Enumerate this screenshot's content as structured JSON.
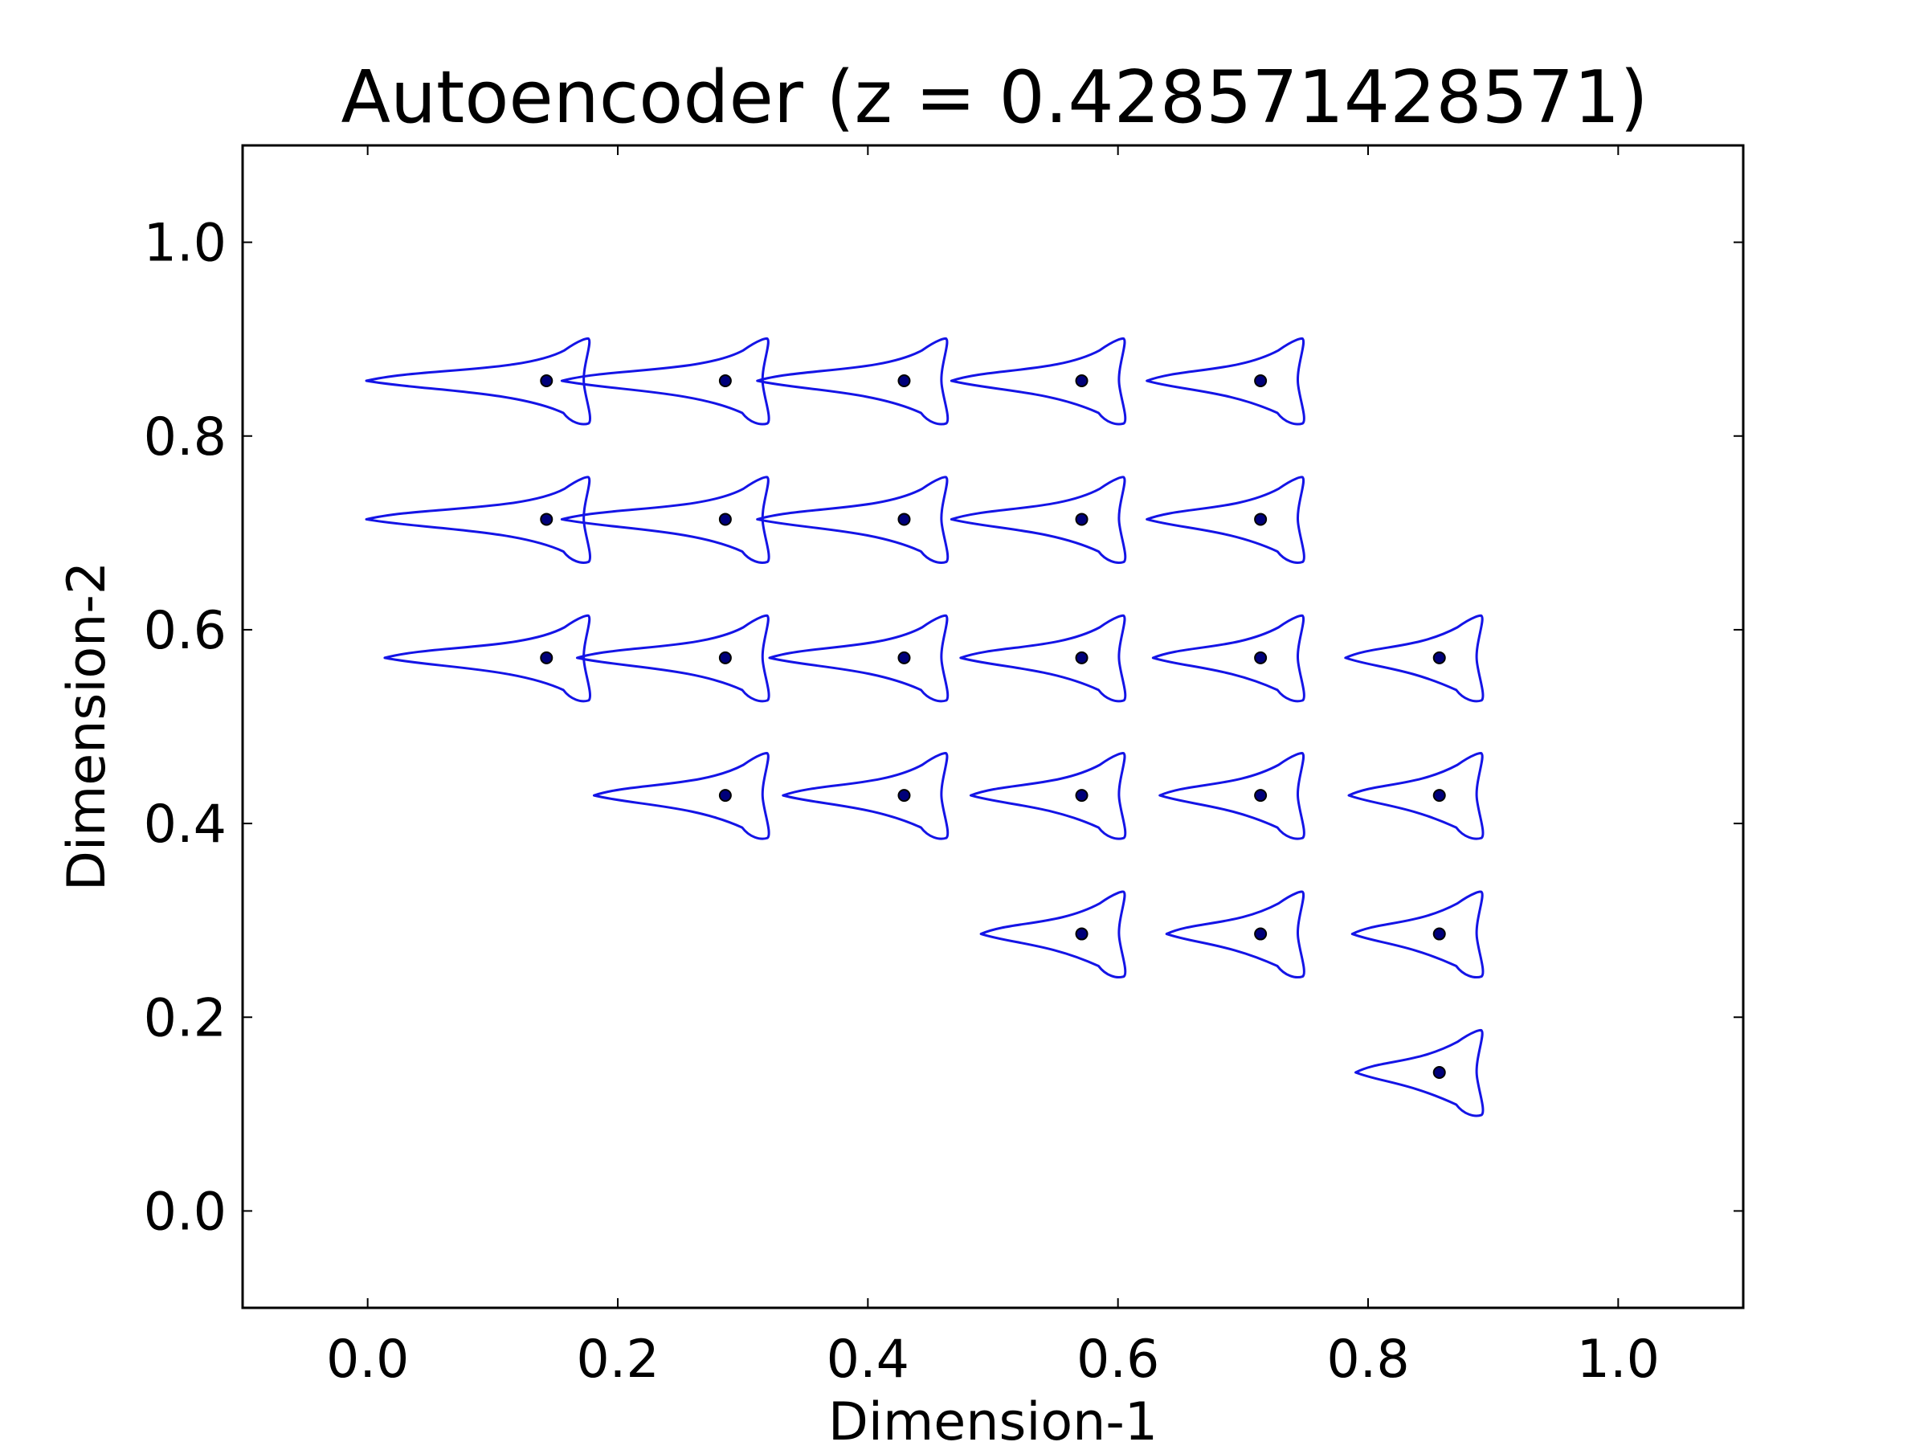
{
  "chart_data": {
    "type": "scatter",
    "title": "Autoencoder (z = 0.428571428571)",
    "xlabel": "Dimension-1",
    "ylabel": "Dimension-2",
    "xlim": [
      -0.1,
      1.1
    ],
    "ylim": [
      -0.1,
      1.1
    ],
    "xticks": [
      "0.0",
      "0.2",
      "0.4",
      "0.6",
      "0.8",
      "1.0"
    ],
    "yticks": [
      "0.0",
      "0.2",
      "0.4",
      "0.6",
      "0.8",
      "1.0"
    ],
    "grid": false,
    "marker_shape": "decoded-profile-outline",
    "outline_color": "#1414e6",
    "dot_color": "#00007a",
    "points": [
      {
        "x": 0.143,
        "y": 0.857
      },
      {
        "x": 0.286,
        "y": 0.857
      },
      {
        "x": 0.429,
        "y": 0.857
      },
      {
        "x": 0.571,
        "y": 0.857
      },
      {
        "x": 0.714,
        "y": 0.857
      },
      {
        "x": 0.143,
        "y": 0.714
      },
      {
        "x": 0.286,
        "y": 0.714
      },
      {
        "x": 0.429,
        "y": 0.714
      },
      {
        "x": 0.571,
        "y": 0.714
      },
      {
        "x": 0.714,
        "y": 0.714
      },
      {
        "x": 0.143,
        "y": 0.571
      },
      {
        "x": 0.286,
        "y": 0.571
      },
      {
        "x": 0.429,
        "y": 0.571
      },
      {
        "x": 0.571,
        "y": 0.571
      },
      {
        "x": 0.714,
        "y": 0.571
      },
      {
        "x": 0.857,
        "y": 0.571
      },
      {
        "x": 0.286,
        "y": 0.429
      },
      {
        "x": 0.429,
        "y": 0.429
      },
      {
        "x": 0.571,
        "y": 0.429
      },
      {
        "x": 0.714,
        "y": 0.429
      },
      {
        "x": 0.857,
        "y": 0.429
      },
      {
        "x": 0.571,
        "y": 0.286
      },
      {
        "x": 0.714,
        "y": 0.286
      },
      {
        "x": 0.857,
        "y": 0.286
      },
      {
        "x": 0.857,
        "y": 0.143
      }
    ]
  }
}
